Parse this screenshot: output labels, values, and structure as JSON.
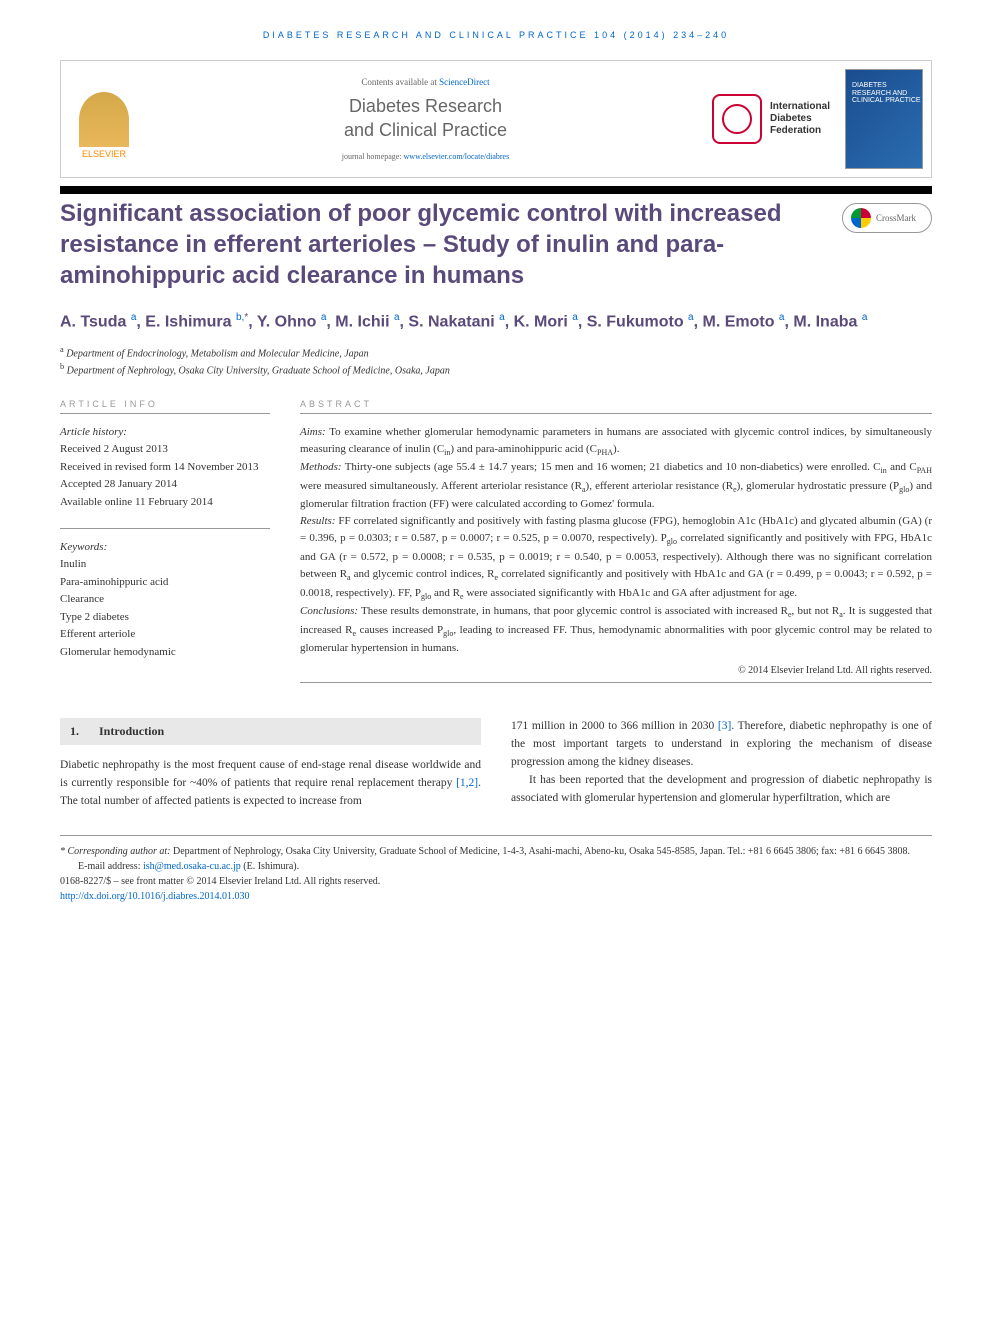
{
  "journal_header": "DIABETES RESEARCH AND CLINICAL PRACTICE 104 (2014) 234–240",
  "header": {
    "contents_available": "Contents available at ",
    "sciencedirect": "ScienceDirect",
    "journal_name_1": "Diabetes Research",
    "journal_name_2": "and Clinical Practice",
    "homepage_label": "journal homepage: ",
    "homepage_url": "www.elsevier.com/locate/diabres",
    "elsevier": "ELSEVIER",
    "idf_line1": "International",
    "idf_line2": "Diabetes",
    "idf_line3": "Federation",
    "cover_text": "DIABETES RESEARCH AND CLINICAL PRACTICE"
  },
  "title": "Significant association of poor glycemic control with increased resistance in efferent arterioles – Study of inulin and para-aminohippuric acid clearance in humans",
  "crossmark": "CrossMark",
  "authors_html": "A. Tsuda <sup>a</sup>, E. Ishimura <sup>b,</sup><sup class='star'>*</sup>, Y. Ohno <sup>a</sup>, M. Ichii <sup>a</sup>, S. Nakatani <sup>a</sup>, K. Mori <sup>a</sup>, S. Fukumoto <sup>a</sup>, M. Emoto <sup>a</sup>, M. Inaba <sup>a</sup>",
  "affiliations": {
    "a": "Department of Endocrinology, Metabolism and Molecular Medicine, Japan",
    "b": "Department of Nephrology, Osaka City University, Graduate School of Medicine, Osaka, Japan"
  },
  "article_info_label": "ARTICLE INFO",
  "abstract_label": "ABSTRACT",
  "history": {
    "label": "Article history:",
    "received": "Received 2 August 2013",
    "revised": "Received in revised form 14 November 2013",
    "accepted": "Accepted 28 January 2014",
    "online": "Available online 11 February 2014"
  },
  "keywords_label": "Keywords:",
  "keywords": [
    "Inulin",
    "Para-aminohippuric acid",
    "Clearance",
    "Type 2 diabetes",
    "Efferent arteriole",
    "Glomerular hemodynamic"
  ],
  "abstract": {
    "aims_label": "Aims:",
    "aims": " To examine whether glomerular hemodynamic parameters in humans are associated with glycemic control indices, by simultaneously measuring clearance of inulin (Cin) and para-aminohippuric acid (CPHA).",
    "methods_label": "Methods:",
    "methods": " Thirty-one subjects (age 55.4 ± 14.7 years; 15 men and 16 women; 21 diabetics and 10 non-diabetics) were enrolled. Cin and CPAH were measured simultaneously. Afferent arteriolar resistance (Ra), efferent arteriolar resistance (Re), glomerular hydrostatic pressure (Pglo) and glomerular filtration fraction (FF) were calculated according to Gomez' formula.",
    "results_label": "Results:",
    "results": " FF correlated significantly and positively with fasting plasma glucose (FPG), hemoglobin A1c (HbA1c) and glycated albumin (GA) (r = 0.396, p = 0.0303; r = 0.587, p = 0.0007; r = 0.525, p = 0.0070, respectively). Pglo correlated significantly and positively with FPG, HbA1c and GA (r = 0.572, p = 0.0008; r = 0.535, p = 0.0019; r = 0.540, p = 0.0053, respectively). Although there was no significant correlation between Ra and glycemic control indices, Re correlated significantly and positively with HbA1c and GA (r = 0.499, p = 0.0043; r = 0.592, p = 0.0018, respectively). FF, Pglo and Re were associated significantly with HbA1c and GA after adjustment for age.",
    "conclusions_label": "Conclusions:",
    "conclusions": " These results demonstrate, in humans, that poor glycemic control is associated with increased Re, but not Ra. It is suggested that increased Re causes increased Pglo, leading to increased FF. Thus, hemodynamic abnormalities with poor glycemic control may be related to glomerular hypertension in humans.",
    "copyright": "© 2014 Elsevier Ireland Ltd. All rights reserved."
  },
  "intro": {
    "heading_num": "1.",
    "heading": "Introduction",
    "p1": "Diabetic nephropathy is the most frequent cause of end-stage renal disease worldwide and is currently responsible for ~40% of patients that require renal replacement therapy ",
    "ref12": "[1,2]",
    "p1b": ". The total number of affected patients is expected to increase from",
    "p2a": "171 million in 2000 to 366 million in 2030 ",
    "ref3": "[3]",
    "p2b": ". Therefore, diabetic nephropathy is one of the most important targets to understand in exploring the mechanism of disease progression among the kidney diseases.",
    "p3": "It has been reported that the development and progression of diabetic nephropathy is associated with glomerular hypertension and glomerular hyperfiltration, which are"
  },
  "footer": {
    "corresp_label": "* Corresponding author at:",
    "corresp": " Department of Nephrology, Osaka City University, Graduate School of Medicine, 1-4-3, Asahi-machi, Abeno-ku, Osaka 545-8585, Japan. Tel.: +81 6 6645 3806; fax: +81 6 6645 3808.",
    "email_label": "E-mail address: ",
    "email": "ish@med.osaka-cu.ac.jp",
    "email_suffix": " (E. Ishimura).",
    "issn": "0168-8227/$ – see front matter © 2014 Elsevier Ireland Ltd. All rights reserved.",
    "doi": "http://dx.doi.org/10.1016/j.diabres.2014.01.030"
  }
}
